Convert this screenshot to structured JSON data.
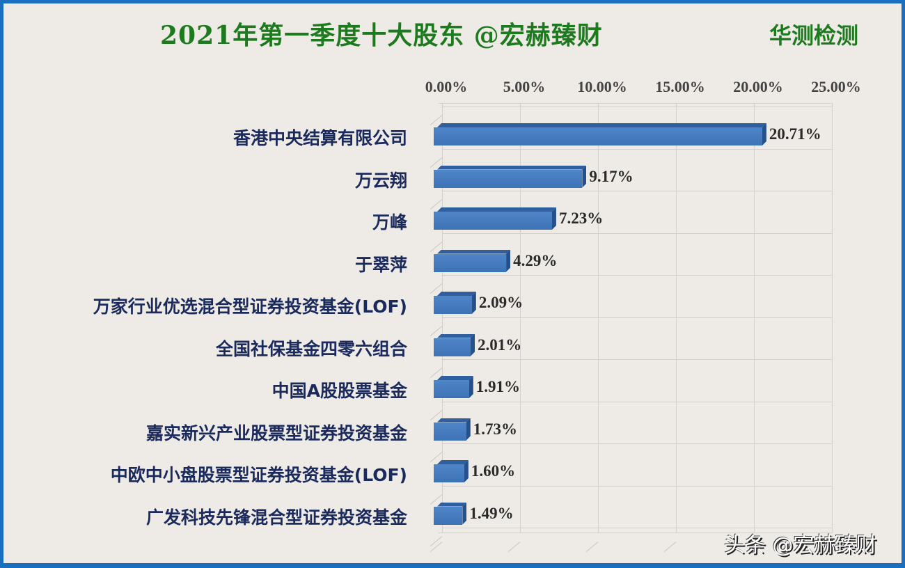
{
  "chart_data": {
    "type": "bar",
    "orientation": "horizontal",
    "title": "2021年第一季度十大股东 @宏赫臻财",
    "brand": "华测检测",
    "xlabel": "",
    "ylabel": "",
    "xlim": [
      0,
      25
    ],
    "x_ticks": [
      "0.00%",
      "5.00%",
      "10.00%",
      "15.00%",
      "20.00%",
      "25.00%"
    ],
    "x_axis_position": "top",
    "grid": true,
    "legend": "none",
    "categories": [
      "香港中央结算有限公司",
      "万云翔",
      "万峰",
      "于翠萍",
      "万家行业优选混合型证券投资基金(LOF)",
      "全国社保基金四零六组合",
      "中国A股股票基金",
      "嘉实新兴产业股票型证券投资基金",
      "中欧中小盘股票型证券投资基金(LOF)",
      "广发科技先锋混合型证券投资基金"
    ],
    "values": [
      20.71,
      9.17,
      7.23,
      4.29,
      2.09,
      2.01,
      1.91,
      1.73,
      1.6,
      1.49
    ],
    "value_labels": [
      "20.71%",
      "9.17%",
      "7.23%",
      "4.29%",
      "2.09%",
      "2.01%",
      "1.91%",
      "1.73%",
      "1.60%",
      "1.49%"
    ],
    "bar_color": "#4a7fc1"
  },
  "watermark": "头条 @宏赫臻财"
}
